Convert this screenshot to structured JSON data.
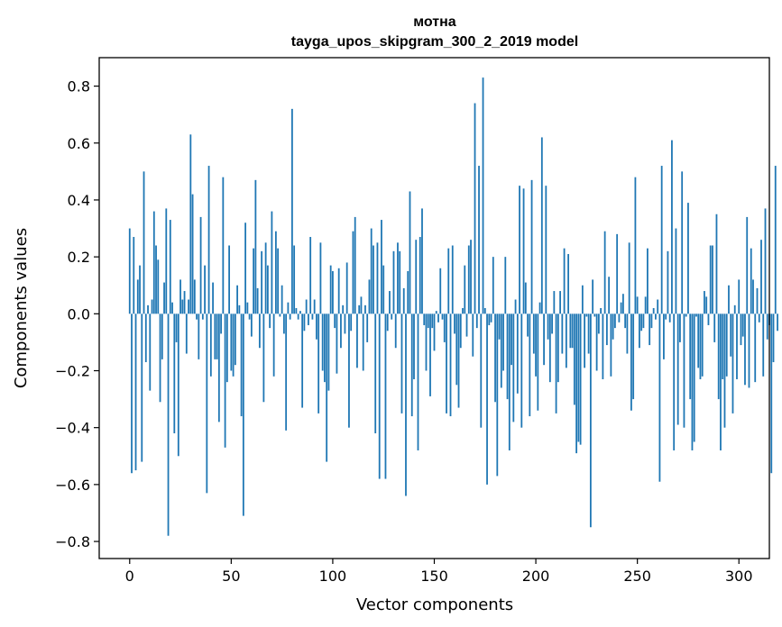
{
  "chart_data": {
    "type": "bar",
    "title": "мотна",
    "subtitle": "tayga_upos_skipgram_300_2_2019 model",
    "xlabel": "Vector components",
    "ylabel": "Components values",
    "xlim": [
      -15,
      315
    ],
    "ylim": [
      -0.86,
      0.9
    ],
    "xticks": [
      0,
      50,
      100,
      150,
      200,
      250,
      300
    ],
    "yticks": [
      -0.8,
      -0.6,
      -0.4,
      -0.2,
      0.0,
      0.2,
      0.4,
      0.6,
      0.8
    ],
    "ytick_labels": [
      "−0.8",
      "−0.6",
      "−0.4",
      "−0.2",
      "0.0",
      "0.2",
      "0.4",
      "0.6",
      "0.8"
    ],
    "grid": false,
    "bar_color": "#1f77b4",
    "values": [
      0.3,
      -0.56,
      0.27,
      -0.55,
      0.12,
      0.17,
      -0.52,
      0.5,
      -0.17,
      0.03,
      -0.27,
      0.05,
      0.36,
      0.24,
      0.19,
      -0.31,
      -0.16,
      0.11,
      0.37,
      -0.78,
      0.33,
      0.04,
      -0.42,
      -0.1,
      -0.5,
      0.12,
      0.05,
      0.08,
      -0.14,
      0.05,
      0.63,
      0.42,
      0.12,
      -0.02,
      -0.16,
      0.34,
      -0.02,
      0.17,
      -0.63,
      0.52,
      -0.22,
      0.11,
      -0.16,
      -0.16,
      -0.38,
      -0.07,
      0.48,
      -0.47,
      -0.24,
      0.24,
      -0.2,
      -0.22,
      -0.18,
      0.1,
      0.03,
      -0.36,
      -0.71,
      0.32,
      0.04,
      -0.02,
      -0.08,
      0.23,
      0.47,
      0.09,
      -0.12,
      0.22,
      -0.31,
      0.25,
      0.17,
      -0.05,
      0.36,
      -0.22,
      0.29,
      0.23,
      -0.01,
      0.1,
      -0.07,
      -0.41,
      0.04,
      -0.02,
      0.72,
      0.24,
      0.02,
      -0.02,
      0.01,
      -0.33,
      -0.06,
      0.05,
      -0.04,
      0.27,
      -0.02,
      0.05,
      -0.09,
      -0.35,
      0.25,
      -0.2,
      -0.24,
      -0.52,
      -0.27,
      0.17,
      0.15,
      -0.05,
      -0.21,
      0.16,
      -0.12,
      0.03,
      -0.07,
      0.18,
      -0.4,
      -0.06,
      0.29,
      0.34,
      -0.19,
      0.03,
      0.06,
      -0.2,
      0.03,
      -0.1,
      0.12,
      0.3,
      0.24,
      -0.42,
      0.25,
      -0.58,
      0.33,
      0.17,
      -0.58,
      -0.06,
      0.08,
      -0.02,
      0.22,
      -0.12,
      0.25,
      0.22,
      -0.35,
      0.09,
      -0.64,
      0.15,
      0.43,
      -0.36,
      -0.23,
      0.26,
      -0.48,
      0.27,
      0.37,
      -0.04,
      -0.2,
      -0.05,
      -0.29,
      -0.05,
      -0.13,
      0.01,
      -0.03,
      0.16,
      -0.02,
      -0.1,
      -0.35,
      0.23,
      -0.36,
      0.24,
      -0.07,
      -0.25,
      -0.33,
      -0.12,
      0.02,
      0.17,
      -0.08,
      0.24,
      0.26,
      -0.15,
      0.74,
      -0.05,
      0.52,
      -0.4,
      0.83,
      0.02,
      -0.6,
      -0.04,
      -0.03,
      0.2,
      -0.31,
      -0.57,
      -0.09,
      -0.26,
      -0.2,
      0.2,
      -0.3,
      -0.48,
      -0.18,
      -0.38,
      0.05,
      -0.28,
      0.45,
      -0.4,
      0.44,
      0.11,
      -0.08,
      -0.36,
      0.47,
      -0.14,
      -0.22,
      -0.34,
      0.04,
      0.62,
      -0.18,
      0.45,
      -0.09,
      -0.24,
      -0.07,
      0.08,
      -0.35,
      -0.24,
      0.08,
      -0.14,
      0.23,
      -0.19,
      0.21,
      -0.12,
      -0.12,
      -0.32,
      -0.49,
      -0.45,
      -0.46,
      0.1,
      -0.19,
      -0.01,
      -0.14,
      -0.75,
      0.12,
      -0.01,
      -0.2,
      -0.07,
      0.02,
      -0.23,
      0.29,
      -0.11,
      0.13,
      -0.22,
      -0.09,
      -0.05,
      0.28,
      -0.03,
      0.04,
      0.07,
      -0.05,
      -0.14,
      0.25,
      -0.34,
      -0.3,
      0.48,
      0.06,
      -0.12,
      -0.06,
      -0.05,
      0.06,
      0.23,
      -0.11,
      -0.05,
      0.02,
      -0.02,
      0.05,
      -0.59,
      0.52,
      -0.16,
      -0.02,
      0.22,
      -0.03,
      0.61,
      -0.48,
      0.3,
      -0.39,
      -0.1,
      0.5,
      -0.4,
      -0.01,
      0.39,
      -0.3,
      -0.48,
      -0.45,
      -0.01,
      -0.19,
      -0.23,
      -0.22,
      0.08,
      0.06,
      -0.04,
      0.24,
      0.24,
      -0.1,
      0.35,
      -0.3,
      -0.48,
      -0.23,
      -0.4,
      -0.22,
      0.1,
      -0.15,
      -0.35,
      0.03,
      -0.23,
      0.12,
      -0.11,
      -0.08,
      -0.25,
      0.34,
      -0.26,
      0.23,
      0.12,
      -0.24,
      0.09,
      -0.03,
      0.26,
      -0.22,
      0.37,
      -0.09,
      -0.04,
      -0.56,
      -0.17,
      0.52,
      -0.06
    ]
  }
}
